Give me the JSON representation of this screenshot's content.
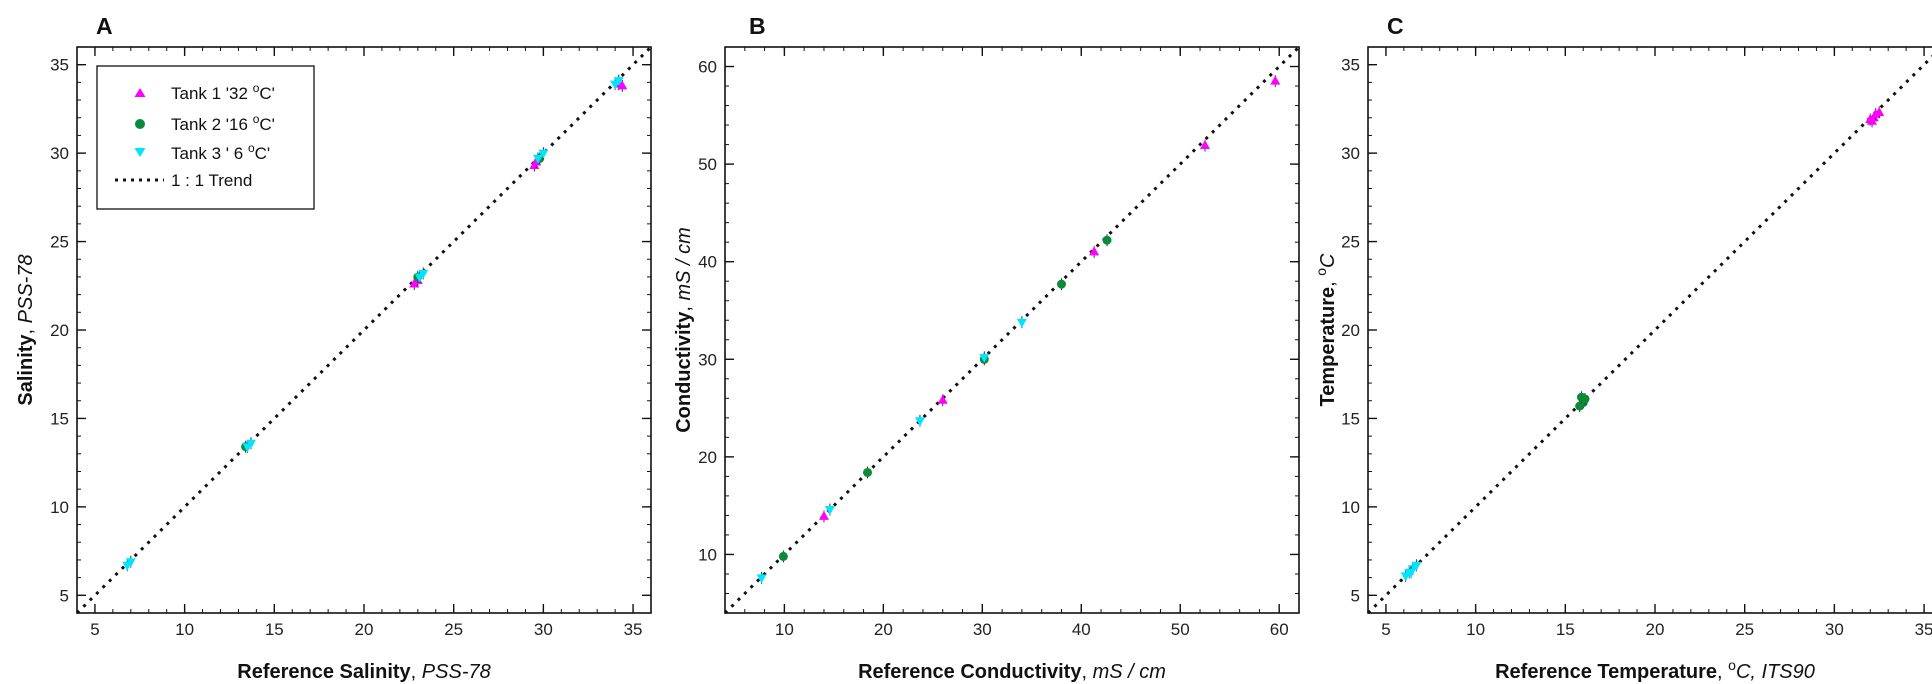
{
  "colors": {
    "tank1": "#ff00ff",
    "tank2": "#0a8a3a",
    "tank3": "#00e5ff",
    "trend": "#111111"
  },
  "legend": {
    "entries": [
      {
        "key": "tank1",
        "label_main": "Tank 1 '32 ",
        "label_sup": "o",
        "label_tail": "C'",
        "marker": "triangle-up"
      },
      {
        "key": "tank2",
        "label_main": "Tank 2 '16 ",
        "label_sup": "o",
        "label_tail": "C'",
        "marker": "circle"
      },
      {
        "key": "tank3",
        "label_main": "Tank  3 ' 6 ",
        "label_sup": "o",
        "label_tail": "C'",
        "marker": "triangle-down"
      },
      {
        "key": "trend",
        "label_main": "1 : 1 Trend",
        "label_sup": "",
        "label_tail": "",
        "marker": "dotted-line"
      }
    ]
  },
  "chart_data": [
    {
      "panel": "A",
      "type": "scatter",
      "xlabel": {
        "bold": "Reference Salinity",
        "sep": ", ",
        "ital": "PSS-78"
      },
      "ylabel": {
        "bold": "Salinity",
        "sep": ", ",
        "ital": "PSS-78"
      },
      "xlim": [
        4,
        36
      ],
      "ylim": [
        4,
        36
      ],
      "xticks": [
        5,
        10,
        15,
        20,
        25,
        30,
        35
      ],
      "yticks": [
        5,
        10,
        15,
        20,
        25,
        30,
        35
      ],
      "trend": {
        "from": [
          4,
          4
        ],
        "to": [
          36,
          36
        ]
      },
      "legend_position": "top-left",
      "series": [
        {
          "name": "Tank 1 '32 oC'",
          "key": "tank1",
          "marker": "triangle-up",
          "x": [
            22.8,
            23.0,
            29.5,
            29.6,
            34.2,
            34.4
          ],
          "y": [
            22.6,
            22.8,
            29.3,
            29.5,
            33.9,
            33.8
          ]
        },
        {
          "name": "Tank 2 '16 oC'",
          "key": "tank2",
          "marker": "circle",
          "x": [
            13.4,
            23.0,
            29.8
          ],
          "y": [
            13.4,
            23.0,
            29.7
          ]
        },
        {
          "name": "Tank 3 ' 6 oC'",
          "key": "tank3",
          "marker": "triangle-down",
          "x": [
            6.8,
            7.0,
            13.5,
            13.7,
            23.1,
            23.3,
            29.7,
            30.0,
            34.0,
            34.2
          ],
          "y": [
            6.7,
            6.9,
            13.4,
            13.6,
            23.0,
            23.2,
            29.7,
            30.0,
            33.9,
            34.1
          ]
        }
      ]
    },
    {
      "panel": "B",
      "type": "scatter",
      "xlabel": {
        "bold": "Reference Conductivity",
        "sep": ", ",
        "ital": "mS / cm"
      },
      "ylabel": {
        "bold": "Conductivity",
        "sep": ", ",
        "ital": "mS / cm"
      },
      "xlim": [
        4,
        62
      ],
      "ylim": [
        4,
        62
      ],
      "xticks": [
        10,
        20,
        30,
        40,
        50,
        60
      ],
      "yticks": [
        10,
        20,
        30,
        40,
        50,
        60
      ],
      "trend": {
        "from": [
          4,
          4
        ],
        "to": [
          62,
          62
        ]
      },
      "series": [
        {
          "name": "Tank 1 '32 oC'",
          "key": "tank1",
          "marker": "triangle-up",
          "x": [
            14.0,
            26.0,
            41.3,
            52.5,
            59.6
          ],
          "y": [
            13.9,
            25.8,
            41.0,
            51.9,
            58.5
          ]
        },
        {
          "name": "Tank 2 '16 oC'",
          "key": "tank2",
          "marker": "circle",
          "x": [
            9.9,
            18.4,
            30.2,
            38.0,
            42.6
          ],
          "y": [
            9.8,
            18.4,
            30.0,
            37.7,
            42.2
          ]
        },
        {
          "name": "Tank 3 ' 6 oC'",
          "key": "tank3",
          "marker": "triangle-down",
          "x": [
            7.7,
            14.6,
            23.7,
            30.2,
            34.0
          ],
          "y": [
            7.6,
            14.6,
            23.7,
            30.2,
            33.8
          ]
        }
      ]
    },
    {
      "panel": "C",
      "type": "scatter",
      "xlabel": {
        "bold": "Reference Temperature",
        "sep": ", ",
        "sup": "o",
        "ital": "C, ITS90"
      },
      "ylabel": {
        "bold": "Temperature",
        "sep": ", ",
        "sup": "o",
        "ital": "C"
      },
      "xlim": [
        4,
        36
      ],
      "ylim": [
        4,
        36
      ],
      "xticks": [
        5,
        10,
        15,
        20,
        25,
        30,
        35
      ],
      "yticks": [
        5,
        10,
        15,
        20,
        25,
        30,
        35
      ],
      "trend": {
        "from": [
          4,
          4
        ],
        "to": [
          36,
          36
        ]
      },
      "series": [
        {
          "name": "Tank 1 '32 oC'",
          "key": "tank1",
          "marker": "triangle-up",
          "x": [
            32.0,
            32.2,
            32.3,
            32.5,
            32.1
          ],
          "y": [
            31.9,
            32.0,
            32.2,
            32.3,
            31.8
          ]
        },
        {
          "name": "Tank 2 '16 oC'",
          "key": "tank2",
          "marker": "circle",
          "x": [
            15.8,
            16.0,
            16.1,
            15.9
          ],
          "y": [
            15.7,
            15.9,
            16.1,
            16.2
          ]
        },
        {
          "name": "Tank 3 ' 6 oC'",
          "key": "tank3",
          "marker": "triangle-down",
          "x": [
            6.1,
            6.3,
            6.5,
            6.7,
            6.4
          ],
          "y": [
            6.1,
            6.3,
            6.5,
            6.7,
            6.3
          ]
        }
      ]
    }
  ]
}
